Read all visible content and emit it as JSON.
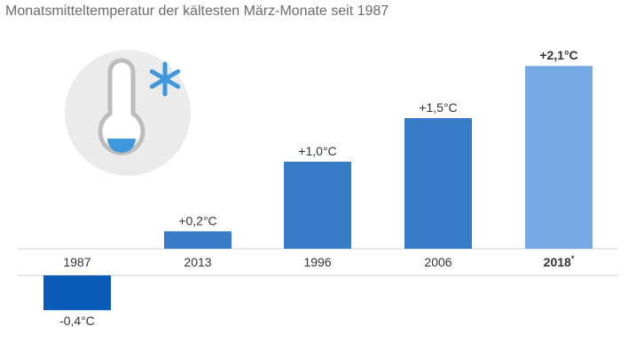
{
  "header": {
    "subtitle": "Monatsmitteltemperatur der kältesten März-Monate seit 1987"
  },
  "colors": {
    "bar_negative": "#0a5cb8",
    "bar_positive": "#357dc7",
    "bar_highlight": "#77a9e4",
    "icon_circle": "#ebebeb",
    "icon_blue": "#3f97dc",
    "axis": "#cccccc"
  },
  "icons": [
    "thermometer-icon",
    "snowflake-icon"
  ],
  "chart_data": {
    "type": "bar",
    "categories": [
      "1987",
      "2013",
      "1996",
      "2006",
      "2018"
    ],
    "category_notes": [
      "",
      "",
      "",
      "",
      "*"
    ],
    "values": [
      -0.4,
      0.2,
      1.0,
      1.5,
      2.1
    ],
    "value_labels": [
      "-0,4°C",
      "+0,2°C",
      "+1,0°C",
      "+1,5°C",
      "+2,1°C"
    ],
    "highlight_index": 4,
    "unit": "°C",
    "grid": false,
    "legend": "none"
  }
}
